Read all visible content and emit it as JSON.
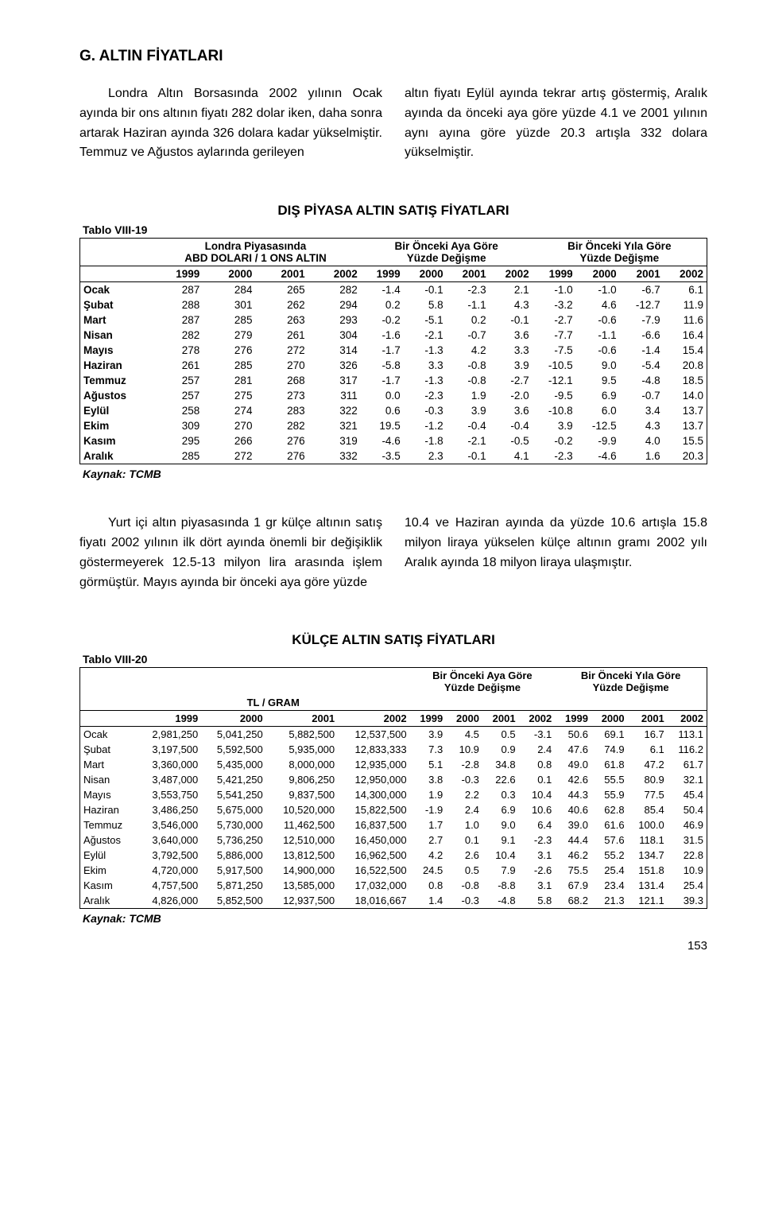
{
  "heading": "G. ALTIN FİYATLARI",
  "para1_left": "Londra Altın Borsasında 2002 yılının Ocak ayında bir ons altının fiyatı 282 dolar iken, daha sonra artarak Haziran ayında 326 dolara kadar yükselmiştir. Temmuz ve Ağustos aylarında gerileyen",
  "para1_right": "altın fiyatı Eylül ayında tekrar artış göstermiş, Aralık ayında da önceki aya göre yüzde 4.1 ve 2001 yılının aynı ayına göre yüzde 20.3 artışla 332 dolara yükselmiştir.",
  "para2_left": "Yurt içi altın piyasasında 1 gr külçe altının satış fiyatı 2002 yılının ilk dört ayında önemli bir değişiklik göstermeyerek 12.5-13 milyon lira arasında işlem görmüştür. Mayıs ayında bir önceki aya göre yüzde",
  "para2_right": "10.4 ve Haziran ayında da yüzde 10.6 artışla 15.8 milyon liraya yükselen külçe altının gramı 2002 yılı Aralık ayında 18 milyon liraya ulaşmıştır.",
  "table1": {
    "title": "DIŞ PİYASA ALTIN SATIŞ FİYATLARI",
    "label": "Tablo VIII-19",
    "group_headers": [
      "Londra Piyasasında ABD DOLARI / 1 ONS ALTIN",
      "Bir Önceki Aya Göre Yüzde Değişme",
      "Bir Önceki Yıla Göre Yüzde Değişme"
    ],
    "years": [
      "1999",
      "2000",
      "2001",
      "2002"
    ],
    "rows": [
      {
        "m": "Ocak",
        "a": [
          "287",
          "284",
          "265",
          "282"
        ],
        "b": [
          "-1.4",
          "-0.1",
          "-2.3",
          "2.1"
        ],
        "c": [
          "-1.0",
          "-1.0",
          "-6.7",
          "6.1"
        ]
      },
      {
        "m": "Şubat",
        "a": [
          "288",
          "301",
          "262",
          "294"
        ],
        "b": [
          "0.2",
          "5.8",
          "-1.1",
          "4.3"
        ],
        "c": [
          "-3.2",
          "4.6",
          "-12.7",
          "11.9"
        ]
      },
      {
        "m": "Mart",
        "a": [
          "287",
          "285",
          "263",
          "293"
        ],
        "b": [
          "-0.2",
          "-5.1",
          "0.2",
          "-0.1"
        ],
        "c": [
          "-2.7",
          "-0.6",
          "-7.9",
          "11.6"
        ]
      },
      {
        "m": "Nisan",
        "a": [
          "282",
          "279",
          "261",
          "304"
        ],
        "b": [
          "-1.6",
          "-2.1",
          "-0.7",
          "3.6"
        ],
        "c": [
          "-7.7",
          "-1.1",
          "-6.6",
          "16.4"
        ]
      },
      {
        "m": "Mayıs",
        "a": [
          "278",
          "276",
          "272",
          "314"
        ],
        "b": [
          "-1.7",
          "-1.3",
          "4.2",
          "3.3"
        ],
        "c": [
          "-7.5",
          "-0.6",
          "-1.4",
          "15.4"
        ]
      },
      {
        "m": "Haziran",
        "a": [
          "261",
          "285",
          "270",
          "326"
        ],
        "b": [
          "-5.8",
          "3.3",
          "-0.8",
          "3.9"
        ],
        "c": [
          "-10.5",
          "9.0",
          "-5.4",
          "20.8"
        ]
      },
      {
        "m": "Temmuz",
        "a": [
          "257",
          "281",
          "268",
          "317"
        ],
        "b": [
          "-1.7",
          "-1.3",
          "-0.8",
          "-2.7"
        ],
        "c": [
          "-12.1",
          "9.5",
          "-4.8",
          "18.5"
        ]
      },
      {
        "m": "Ağustos",
        "a": [
          "257",
          "275",
          "273",
          "311"
        ],
        "b": [
          "0.0",
          "-2.3",
          "1.9",
          "-2.0"
        ],
        "c": [
          "-9.5",
          "6.9",
          "-0.7",
          "14.0"
        ]
      },
      {
        "m": "Eylül",
        "a": [
          "258",
          "274",
          "283",
          "322"
        ],
        "b": [
          "0.6",
          "-0.3",
          "3.9",
          "3.6"
        ],
        "c": [
          "-10.8",
          "6.0",
          "3.4",
          "13.7"
        ]
      },
      {
        "m": "Ekim",
        "a": [
          "309",
          "270",
          "282",
          "321"
        ],
        "b": [
          "19.5",
          "-1.2",
          "-0.4",
          "-0.4"
        ],
        "c": [
          "3.9",
          "-12.5",
          "4.3",
          "13.7"
        ]
      },
      {
        "m": "Kasım",
        "a": [
          "295",
          "266",
          "276",
          "319"
        ],
        "b": [
          "-4.6",
          "-1.8",
          "-2.1",
          "-0.5"
        ],
        "c": [
          "-0.2",
          "-9.9",
          "4.0",
          "15.5"
        ]
      },
      {
        "m": "Aralık",
        "a": [
          "285",
          "272",
          "276",
          "332"
        ],
        "b": [
          "-3.5",
          "2.3",
          "-0.1",
          "4.1"
        ],
        "c": [
          "-2.3",
          "-4.6",
          "1.6",
          "20.3"
        ]
      }
    ],
    "source": "Kaynak: TCMB"
  },
  "table2": {
    "title": "KÜLÇE ALTIN SATIŞ FİYATLARI",
    "label": "Tablo VIII-20",
    "group_headers": [
      "TL / GRAM",
      "Bir Önceki Aya Göre Yüzde Değişme",
      "Bir Önceki Yıla Göre Yüzde Değişme"
    ],
    "years": [
      "1999",
      "2000",
      "2001",
      "2002"
    ],
    "rows": [
      {
        "m": "Ocak",
        "a": [
          "2,981,250",
          "5,041,250",
          "5,882,500",
          "12,537,500"
        ],
        "b": [
          "3.9",
          "4.5",
          "0.5",
          "-3.1"
        ],
        "c": [
          "50.6",
          "69.1",
          "16.7",
          "113.1"
        ]
      },
      {
        "m": "Şubat",
        "a": [
          "3,197,500",
          "5,592,500",
          "5,935,000",
          "12,833,333"
        ],
        "b": [
          "7.3",
          "10.9",
          "0.9",
          "2.4"
        ],
        "c": [
          "47.6",
          "74.9",
          "6.1",
          "116.2"
        ]
      },
      {
        "m": "Mart",
        "a": [
          "3,360,000",
          "5,435,000",
          "8,000,000",
          "12,935,000"
        ],
        "b": [
          "5.1",
          "-2.8",
          "34.8",
          "0.8"
        ],
        "c": [
          "49.0",
          "61.8",
          "47.2",
          "61.7"
        ]
      },
      {
        "m": "Nisan",
        "a": [
          "3,487,000",
          "5,421,250",
          "9,806,250",
          "12,950,000"
        ],
        "b": [
          "3.8",
          "-0.3",
          "22.6",
          "0.1"
        ],
        "c": [
          "42.6",
          "55.5",
          "80.9",
          "32.1"
        ]
      },
      {
        "m": "Mayıs",
        "a": [
          "3,553,750",
          "5,541,250",
          "9,837,500",
          "14,300,000"
        ],
        "b": [
          "1.9",
          "2.2",
          "0.3",
          "10.4"
        ],
        "c": [
          "44.3",
          "55.9",
          "77.5",
          "45.4"
        ]
      },
      {
        "m": "Haziran",
        "a": [
          "3,486,250",
          "5,675,000",
          "10,520,000",
          "15,822,500"
        ],
        "b": [
          "-1.9",
          "2.4",
          "6.9",
          "10.6"
        ],
        "c": [
          "40.6",
          "62.8",
          "85.4",
          "50.4"
        ]
      },
      {
        "m": "Temmuz",
        "a": [
          "3,546,000",
          "5,730,000",
          "11,462,500",
          "16,837,500"
        ],
        "b": [
          "1.7",
          "1.0",
          "9.0",
          "6.4"
        ],
        "c": [
          "39.0",
          "61.6",
          "100.0",
          "46.9"
        ]
      },
      {
        "m": "Ağustos",
        "a": [
          "3,640,000",
          "5,736,250",
          "12,510,000",
          "16,450,000"
        ],
        "b": [
          "2.7",
          "0.1",
          "9.1",
          "-2.3"
        ],
        "c": [
          "44.4",
          "57.6",
          "118.1",
          "31.5"
        ]
      },
      {
        "m": "Eylül",
        "a": [
          "3,792,500",
          "5,886,000",
          "13,812,500",
          "16,962,500"
        ],
        "b": [
          "4.2",
          "2.6",
          "10.4",
          "3.1"
        ],
        "c": [
          "46.2",
          "55.2",
          "134.7",
          "22.8"
        ]
      },
      {
        "m": "Ekim",
        "a": [
          "4,720,000",
          "5,917,500",
          "14,900,000",
          "16,522,500"
        ],
        "b": [
          "24.5",
          "0.5",
          "7.9",
          "-2.6"
        ],
        "c": [
          "75.5",
          "25.4",
          "151.8",
          "10.9"
        ]
      },
      {
        "m": "Kasım",
        "a": [
          "4,757,500",
          "5,871,250",
          "13,585,000",
          "17,032,000"
        ],
        "b": [
          "0.8",
          "-0.8",
          "-8.8",
          "3.1"
        ],
        "c": [
          "67.9",
          "23.4",
          "131.4",
          "25.4"
        ]
      },
      {
        "m": "Aralık",
        "a": [
          "4,826,000",
          "5,852,500",
          "12,937,500",
          "18,016,667"
        ],
        "b": [
          "1.4",
          "-0.3",
          "-4.8",
          "5.8"
        ],
        "c": [
          "68.2",
          "21.3",
          "121.1",
          "39.3"
        ]
      }
    ],
    "source": "Kaynak: TCMB"
  },
  "page_number": "153"
}
